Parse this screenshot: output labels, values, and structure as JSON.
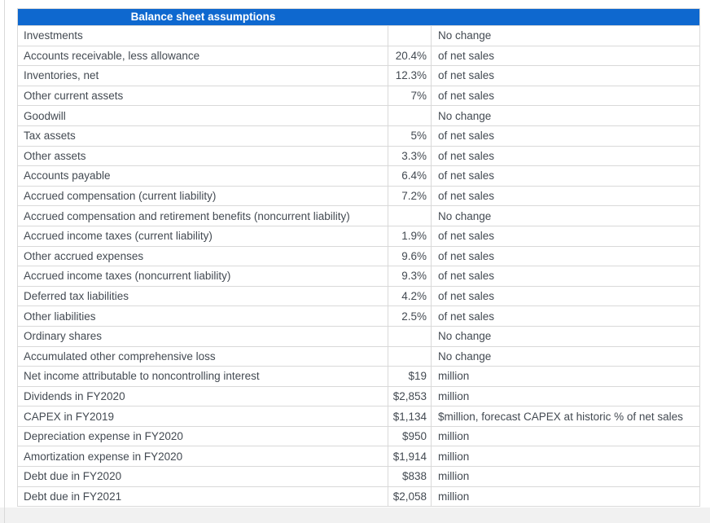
{
  "header": {
    "title": "Balance sheet assumptions"
  },
  "table": {
    "rows": [
      {
        "label": "Investments",
        "value": "",
        "note": "No change"
      },
      {
        "label": "Accounts receivable, less allowance",
        "value": "20.4%",
        "note": "of net sales"
      },
      {
        "label": "Inventories, net",
        "value": "12.3%",
        "note": "of net sales"
      },
      {
        "label": "Other current assets",
        "value": "7%",
        "note": "of net sales"
      },
      {
        "label": "Goodwill",
        "value": "",
        "note": "No change"
      },
      {
        "label": "Tax assets",
        "value": "5%",
        "note": "of net sales"
      },
      {
        "label": "Other assets",
        "value": "3.3%",
        "note": "of net sales"
      },
      {
        "label": "Accounts payable",
        "value": "6.4%",
        "note": "of net sales"
      },
      {
        "label": "Accrued compensation (current liability)",
        "value": "7.2%",
        "note": "of net sales"
      },
      {
        "label": "Accrued compensation and retirement benefits (noncurrent liability)",
        "value": "",
        "note": "No change"
      },
      {
        "label": "Accrued income taxes (current liability)",
        "value": "1.9%",
        "note": "of net sales"
      },
      {
        "label": "Other accrued expenses",
        "value": "9.6%",
        "note": "of net sales"
      },
      {
        "label": "Accrued income taxes (noncurrent liability)",
        "value": "9.3%",
        "note": "of net sales"
      },
      {
        "label": "Deferred tax liabilities",
        "value": "4.2%",
        "note": "of net sales"
      },
      {
        "label": "Other liabilities",
        "value": "2.5%",
        "note": "of net sales"
      },
      {
        "label": "Ordinary shares",
        "value": "",
        "note": "No change"
      },
      {
        "label": "Accumulated other comprehensive loss",
        "value": "",
        "note": "No change"
      },
      {
        "label": "Net income attributable to noncontrolling interest",
        "value": "$19",
        "note": "million"
      },
      {
        "label": "Dividends in FY2020",
        "value": "$2,853",
        "note": "million"
      },
      {
        "label": "CAPEX in FY2019",
        "value": "$1,134",
        "note": "$million, forecast CAPEX at historic % of net sales"
      },
      {
        "label": "Depreciation expense in FY2020",
        "value": "$950",
        "note": "million"
      },
      {
        "label": "Amortization expense in FY2020",
        "value": "$1,914",
        "note": "million"
      },
      {
        "label": "Debt due in FY2020",
        "value": "$838",
        "note": "million"
      },
      {
        "label": "Debt due in FY2021",
        "value": "$2,058",
        "note": "million"
      }
    ]
  },
  "colors": {
    "header_bg": "#0e68cf",
    "header_text": "#ffffff",
    "body_text": "#434a52",
    "grid_border": "#d9d9d9",
    "page_bg": "#ffffff",
    "footer_band": "#f1f1f1"
  }
}
